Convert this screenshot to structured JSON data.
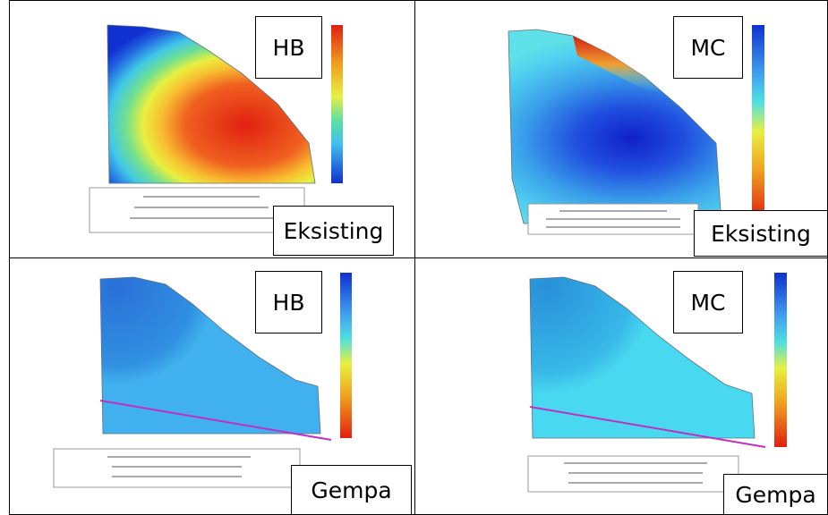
{
  "panels": [
    {
      "model": "HB",
      "condition": "Eksisting"
    },
    {
      "model": "MC",
      "condition": "Eksisting"
    },
    {
      "model": "HB",
      "condition": "Gempa"
    },
    {
      "model": "MC",
      "condition": "Gempa"
    }
  ]
}
